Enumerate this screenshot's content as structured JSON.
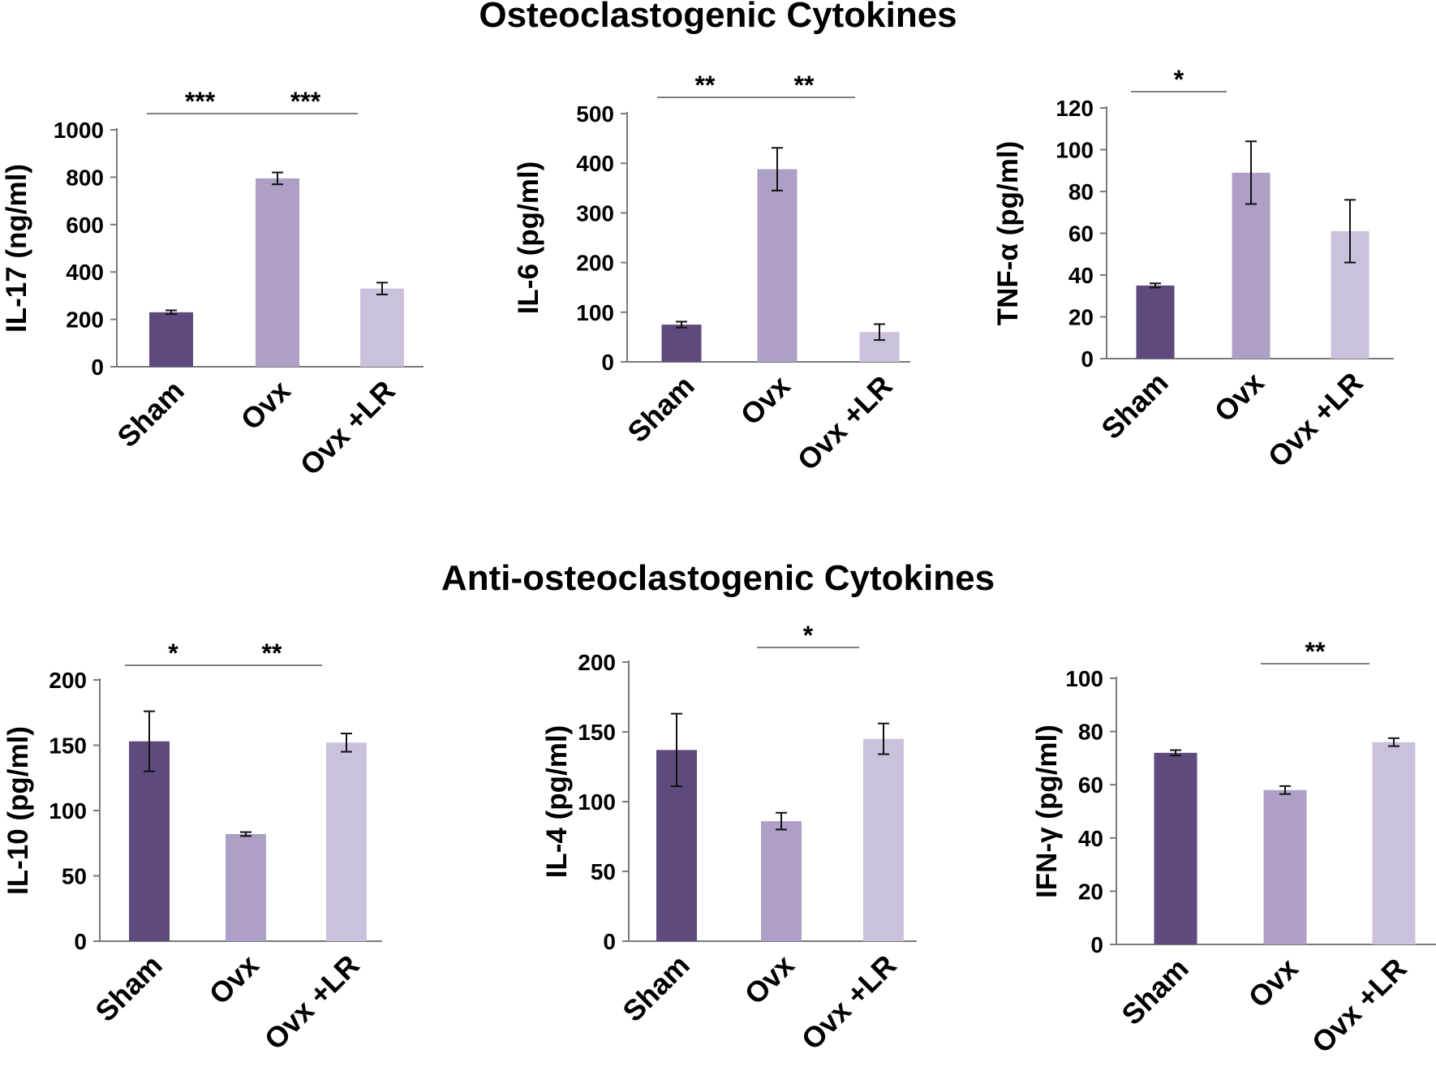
{
  "sections": {
    "top": {
      "title": "Osteoclastogenic Cytokines"
    },
    "bottom": {
      "title": "Anti-osteoclastogenic Cytokines"
    }
  },
  "colors": {
    "sham": "#5e4a7c",
    "ovx": "#ad9fc6",
    "ovx_lr": "#cbc1dd"
  },
  "chart_data": [
    {
      "type": "bar",
      "ylabel": "IL-17 (ng/ml)",
      "categories": [
        "Sham",
        "Ovx",
        "Ovx +LR"
      ],
      "values": [
        230,
        795,
        330
      ],
      "errors": [
        8,
        25,
        25
      ],
      "ylim": [
        0,
        1000
      ],
      "yticks": [
        0,
        200,
        400,
        600,
        800,
        1000
      ],
      "significance": [
        {
          "from": 0,
          "to": 1,
          "label": "***"
        },
        {
          "from": 1,
          "to": 2,
          "label": "***"
        }
      ],
      "grid": false
    },
    {
      "type": "bar",
      "ylabel": "IL-6 (pg/ml)",
      "categories": [
        "Sham",
        "Ovx",
        "Ovx +LR"
      ],
      "values": [
        75,
        388,
        60
      ],
      "errors": [
        6,
        43,
        16
      ],
      "ylim": [
        0,
        500
      ],
      "yticks": [
        0,
        100,
        200,
        300,
        400,
        500
      ],
      "significance": [
        {
          "from": 0,
          "to": 1,
          "label": "**"
        },
        {
          "from": 1,
          "to": 2,
          "label": "**"
        }
      ],
      "grid": false
    },
    {
      "type": "bar",
      "ylabel": "TNF-α  (pg/ml)",
      "categories": [
        "Sham",
        "Ovx",
        "Ovx +LR"
      ],
      "values": [
        35,
        89,
        61
      ],
      "errors": [
        1,
        15,
        15
      ],
      "ylim": [
        0,
        120
      ],
      "yticks": [
        0,
        20,
        40,
        60,
        80,
        100,
        120
      ],
      "significance": [
        {
          "from": 0,
          "to": 1,
          "label": "*"
        }
      ],
      "grid": false
    },
    {
      "type": "bar",
      "ylabel": "IL-10 (pg/ml)",
      "categories": [
        "Sham",
        "Ovx",
        "Ovx +LR"
      ],
      "values": [
        153,
        82,
        152
      ],
      "errors": [
        23,
        1.5,
        7
      ],
      "ylim": [
        0,
        200
      ],
      "yticks": [
        0,
        50,
        100,
        150,
        200
      ],
      "significance": [
        {
          "from": 0,
          "to": 1,
          "label": "*"
        },
        {
          "from": 1,
          "to": 2,
          "label": "**"
        }
      ],
      "grid": false
    },
    {
      "type": "bar",
      "ylabel": "IL-4 (pg/ml)",
      "categories": [
        "Sham",
        "Ovx",
        "Ovx +LR"
      ],
      "values": [
        137,
        86,
        145
      ],
      "errors": [
        26,
        6,
        11
      ],
      "ylim": [
        0,
        200
      ],
      "yticks": [
        0,
        50,
        100,
        150,
        200
      ],
      "significance": [
        {
          "from": 1,
          "to": 2,
          "label": "*"
        }
      ],
      "grid": false
    },
    {
      "type": "bar",
      "ylabel": "IFN-γ (pg/ml)",
      "categories": [
        "Sham",
        "Ovx",
        "Ovx +LR"
      ],
      "values": [
        72,
        58,
        76
      ],
      "errors": [
        1,
        1.5,
        1.5
      ],
      "ylim": [
        0,
        100
      ],
      "yticks": [
        0,
        20,
        40,
        60,
        80,
        100
      ],
      "significance": [
        {
          "from": 1,
          "to": 2,
          "label": "**"
        }
      ],
      "grid": false
    }
  ]
}
